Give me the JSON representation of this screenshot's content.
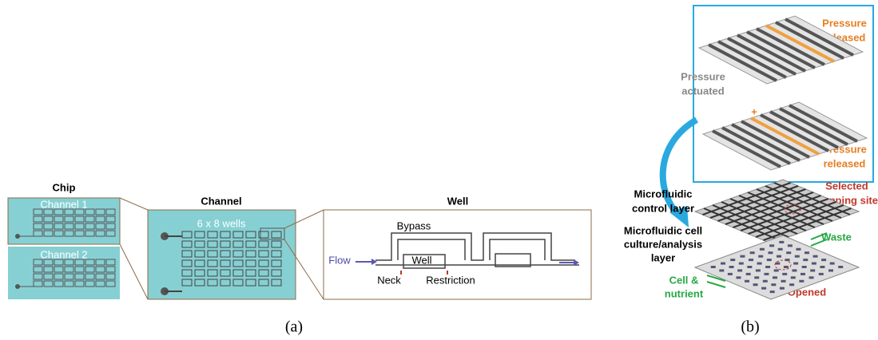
{
  "panel_a": {
    "chip": {
      "title": "Chip",
      "channel_1": "Channel 1",
      "channel_2": "Channel 2"
    },
    "channel": {
      "title": "Channel",
      "wells": "6 x 8 wells"
    },
    "well": {
      "title": "Well",
      "bypass": "Bypass",
      "flow": "Flow",
      "well": "Well",
      "neck": "Neck",
      "restriction": "Restriction"
    },
    "caption": "(a)"
  },
  "panel_b": {
    "pressure_released_top": [
      "Pressure",
      "released"
    ],
    "pressure_actuated": [
      "Pressure",
      "actuated"
    ],
    "pressure_released_bottom": [
      "Pressure",
      "released"
    ],
    "control_layer": [
      "Microfluidic",
      "control layer"
    ],
    "culture_layer": [
      "Microfluidic cell",
      "culture/analysis",
      "layer"
    ],
    "trapping_site": [
      "Selected",
      "trapping site"
    ],
    "waste": "Waste",
    "cell_nutrient": [
      "Cell &",
      "nutrient"
    ],
    "opened": "Opened",
    "caption": "(b)"
  }
}
